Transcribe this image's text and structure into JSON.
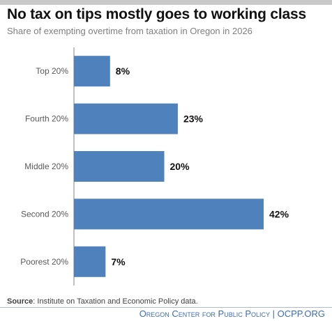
{
  "chart_data": {
    "type": "bar",
    "orientation": "horizontal",
    "title": "No tax on tips mostly goes to working class",
    "subtitle": "Share of exempting overtime from taxation in Oregon in 2026",
    "categories": [
      "Top 20%",
      "Fourth 20%",
      "Middle 20%",
      "Second 20%",
      "Poorest 20%"
    ],
    "values": [
      8,
      23,
      20,
      42,
      7
    ],
    "value_labels": [
      "8%",
      "23%",
      "20%",
      "42%",
      "7%"
    ],
    "xlim": [
      0,
      42
    ],
    "grid": false,
    "bar_color": "#4f81bd"
  },
  "source": {
    "label": "Source",
    "text": ": Institute on Taxation and Economic Policy data."
  },
  "footer": {
    "org": "Oregon Center for Public Policy",
    "separator": " | ",
    "site": "OCPP.ORG"
  },
  "colors": {
    "accent": "#3d6db5",
    "bar": "#4f81bd"
  }
}
